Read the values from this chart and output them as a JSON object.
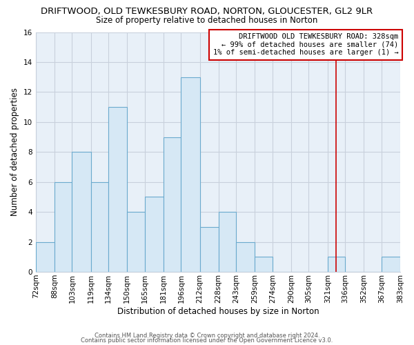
{
  "title": "DRIFTWOOD, OLD TEWKESBURY ROAD, NORTON, GLOUCESTER, GL2 9LR",
  "subtitle": "Size of property relative to detached houses in Norton",
  "xlabel": "Distribution of detached houses by size in Norton",
  "ylabel": "Number of detached properties",
  "bar_color": "#d6e8f5",
  "bar_edge_color": "#6aaace",
  "background_color": "#ffffff",
  "plot_bg_color": "#e8f0f8",
  "grid_color": "#c8d0dc",
  "bins": [
    72,
    88,
    103,
    119,
    134,
    150,
    165,
    181,
    196,
    212,
    228,
    243,
    259,
    274,
    290,
    305,
    321,
    336,
    352,
    367,
    383
  ],
  "counts": [
    2,
    6,
    8,
    6,
    11,
    4,
    5,
    9,
    13,
    3,
    4,
    2,
    1,
    0,
    0,
    0,
    1,
    0,
    0,
    1
  ],
  "tick_labels": [
    "72sqm",
    "88sqm",
    "103sqm",
    "119sqm",
    "134sqm",
    "150sqm",
    "165sqm",
    "181sqm",
    "196sqm",
    "212sqm",
    "228sqm",
    "243sqm",
    "259sqm",
    "274sqm",
    "290sqm",
    "305sqm",
    "321sqm",
    "336sqm",
    "352sqm",
    "367sqm",
    "383sqm"
  ],
  "vline_x": 328,
  "vline_color": "#cc0000",
  "ylim": [
    0,
    16
  ],
  "yticks": [
    0,
    2,
    4,
    6,
    8,
    10,
    12,
    14,
    16
  ],
  "annotation_title": "DRIFTWOOD OLD TEWKESBURY ROAD: 328sqm",
  "annotation_line1": "← 99% of detached houses are smaller (74)",
  "annotation_line2": "1% of semi-detached houses are larger (1) →",
  "footer1": "Contains HM Land Registry data © Crown copyright and database right 2024.",
  "footer2": "Contains public sector information licensed under the Open Government Licence v3.0.",
  "title_fontsize": 9.5,
  "subtitle_fontsize": 8.5,
  "ylabel_fontsize": 8.5,
  "xlabel_fontsize": 8.5,
  "tick_fontsize": 7.5,
  "ann_fontsize": 7.5,
  "footer_fontsize": 6.0
}
